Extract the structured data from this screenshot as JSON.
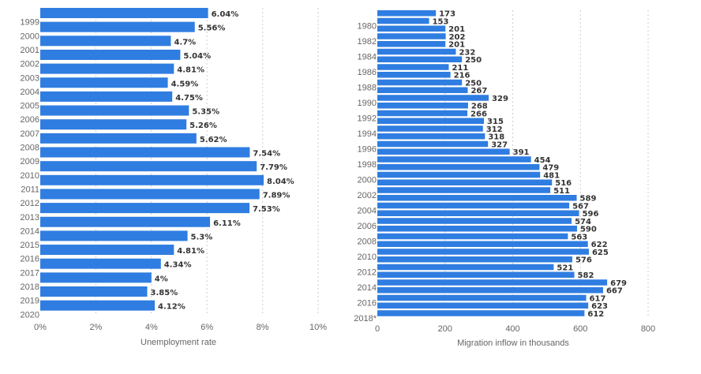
{
  "colors": {
    "bar": "#2f7de1",
    "grid": "#cccccc",
    "text": "#666666",
    "value": "#333333"
  },
  "chart_data": [
    {
      "type": "bar",
      "orientation": "horizontal",
      "xlabel": "Unemployment rate",
      "xlim": [
        0,
        10
      ],
      "x_ticks": [
        "0%",
        "2%",
        "4%",
        "6%",
        "8%",
        "10%"
      ],
      "category_labels": [
        "1999",
        "2000",
        "2001",
        "2002",
        "2003",
        "2004",
        "2005",
        "2006",
        "2007",
        "2008",
        "2009",
        "2010",
        "2011",
        "2012",
        "2013",
        "2014",
        "2015",
        "2016",
        "2017",
        "2018",
        "2019",
        "2020"
      ],
      "values": [
        6.04,
        5.56,
        4.7,
        5.04,
        4.81,
        4.59,
        4.75,
        5.35,
        5.26,
        5.62,
        7.54,
        7.79,
        8.04,
        7.89,
        7.53,
        6.11,
        5.3,
        4.81,
        4.34,
        4.0,
        3.85,
        4.12
      ],
      "value_labels": [
        "6.04%",
        "5.56%",
        "4.7%",
        "5.04%",
        "4.81%",
        "4.59%",
        "4.75%",
        "5.35%",
        "5.26%",
        "5.62%",
        "7.54%",
        "7.79%",
        "8.04%",
        "7.89%",
        "7.53%",
        "6.11%",
        "5.3%",
        "4.81%",
        "4.34%",
        "4%",
        "3.85%",
        "4.12%"
      ],
      "grid": true
    },
    {
      "type": "bar",
      "orientation": "horizontal",
      "xlabel": "Migration inflow in thousands",
      "xlim": [
        0,
        800
      ],
      "x_ticks": [
        "0",
        "200",
        "400",
        "600",
        "800"
      ],
      "category_labels": [
        "1980",
        "1982",
        "1984",
        "1986",
        "1988",
        "1990",
        "1992",
        "1994",
        "1996",
        "1998",
        "2000",
        "2002",
        "2004",
        "2006",
        "2008",
        "2010",
        "2012",
        "2014",
        "2016",
        "2018*"
      ],
      "values": [
        173,
        153,
        201,
        202,
        201,
        232,
        250,
        211,
        216,
        250,
        267,
        329,
        268,
        266,
        315,
        312,
        318,
        327,
        391,
        454,
        479,
        481,
        516,
        511,
        589,
        567,
        596,
        574,
        590,
        563,
        622,
        625,
        576,
        521,
        582,
        679,
        667,
        617,
        623,
        612
      ],
      "grid": true
    }
  ]
}
